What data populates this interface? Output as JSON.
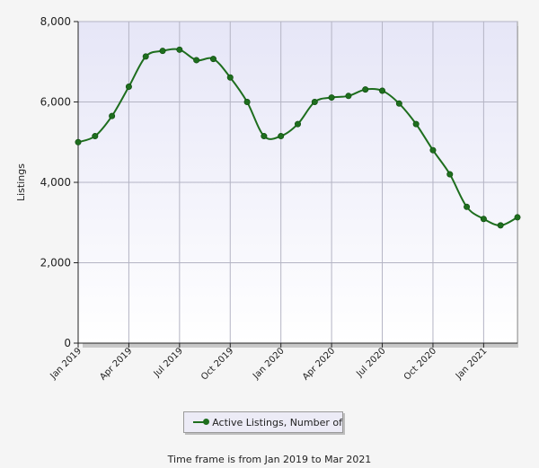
{
  "chart_data": {
    "type": "line",
    "title": "",
    "xlabel": "",
    "ylabel": "Listings",
    "ylim": [
      0,
      8000
    ],
    "y_ticks": [
      "0",
      "2,000",
      "4,000",
      "6,000",
      "8,000"
    ],
    "x_ticks": [
      "Jan 2019",
      "Apr 2019",
      "Jul 2019",
      "Oct 2019",
      "Jan 2020",
      "Apr 2020",
      "Jul 2020",
      "Oct 2020",
      "Jan 2021"
    ],
    "grid": true,
    "legend_position": "bottom",
    "series": [
      {
        "name": "Active Listings, Number of",
        "color": "#1e6e1e",
        "x": [
          "Jan 2019",
          "Feb 2019",
          "Mar 2019",
          "Apr 2019",
          "May 2019",
          "Jun 2019",
          "Jul 2019",
          "Aug 2019",
          "Sep 2019",
          "Oct 2019",
          "Nov 2019",
          "Dec 2019",
          "Jan 2020",
          "Feb 2020",
          "Mar 2020",
          "Apr 2020",
          "May 2020",
          "Jun 2020",
          "Jul 2020",
          "Aug 2020",
          "Sep 2020",
          "Oct 2020",
          "Nov 2020",
          "Dec 2020",
          "Jan 2021",
          "Feb 2021",
          "Mar 2021"
        ],
        "values": [
          5000,
          5150,
          5650,
          6380,
          7130,
          7270,
          7300,
          7040,
          7070,
          6610,
          6000,
          5150,
          5150,
          5450,
          6000,
          6110,
          6150,
          6310,
          6280,
          5960,
          5450,
          4800,
          4200,
          3390,
          3090,
          2930,
          3130
        ]
      }
    ],
    "plot_background": "#e9e9f8",
    "footer": "Time frame is from Jan 2019 to Mar 2021"
  }
}
